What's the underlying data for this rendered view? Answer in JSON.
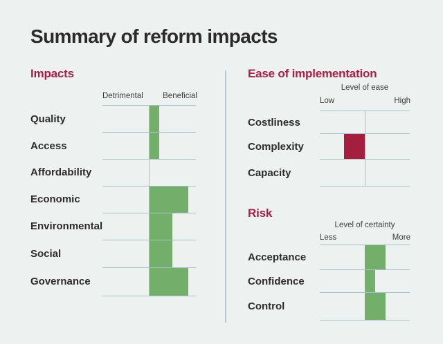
{
  "title": "Summary of reform impacts",
  "colors": {
    "background": "#edf2f1",
    "heading_red": "#a72045",
    "bar_green": "#74ae6b",
    "bar_red": "#a41e3f",
    "grid_line": "#a6bfca",
    "text_dark": "#2d2a2c"
  },
  "chart_data": [
    {
      "type": "bar",
      "title": "Impacts",
      "orientation": "horizontal-diverging",
      "axis": {
        "header": "",
        "left_label": "Detrimental",
        "right_label": "Beneficial",
        "range": [
          -1,
          1
        ]
      },
      "categories": [
        "Quality",
        "Access",
        "Affordability",
        "Economic",
        "Environmental",
        "Social",
        "Governance"
      ],
      "values": [
        0.21,
        0.21,
        0,
        0.84,
        0.5,
        0.5,
        0.84
      ],
      "bar_color": "#74ae6b",
      "legend": "bars extend right of center line toward Beneficial; empty row = neutral"
    },
    {
      "type": "bar",
      "title": "Ease of implementation",
      "orientation": "horizontal-diverging",
      "axis": {
        "header": "Level of ease",
        "left_label": "Low",
        "right_label": "High",
        "range": [
          -1,
          1
        ]
      },
      "categories": [
        "Costliness",
        "Complexity",
        "Capacity"
      ],
      "values": [
        0,
        -0.46,
        0
      ],
      "bar_color": "#a41e3f",
      "legend": "bar extends left of center line toward Low"
    },
    {
      "type": "bar",
      "title": "Risk",
      "orientation": "horizontal-diverging",
      "axis": {
        "header": "Level of certainty",
        "left_label": "Less",
        "right_label": "More",
        "range": [
          -1,
          1
        ]
      },
      "categories": [
        "Acceptance",
        "Confidence",
        "Control"
      ],
      "values": [
        0.46,
        0.23,
        0.46
      ],
      "bar_color": "#74ae6b",
      "legend": "bars extend right of center line toward More"
    }
  ]
}
